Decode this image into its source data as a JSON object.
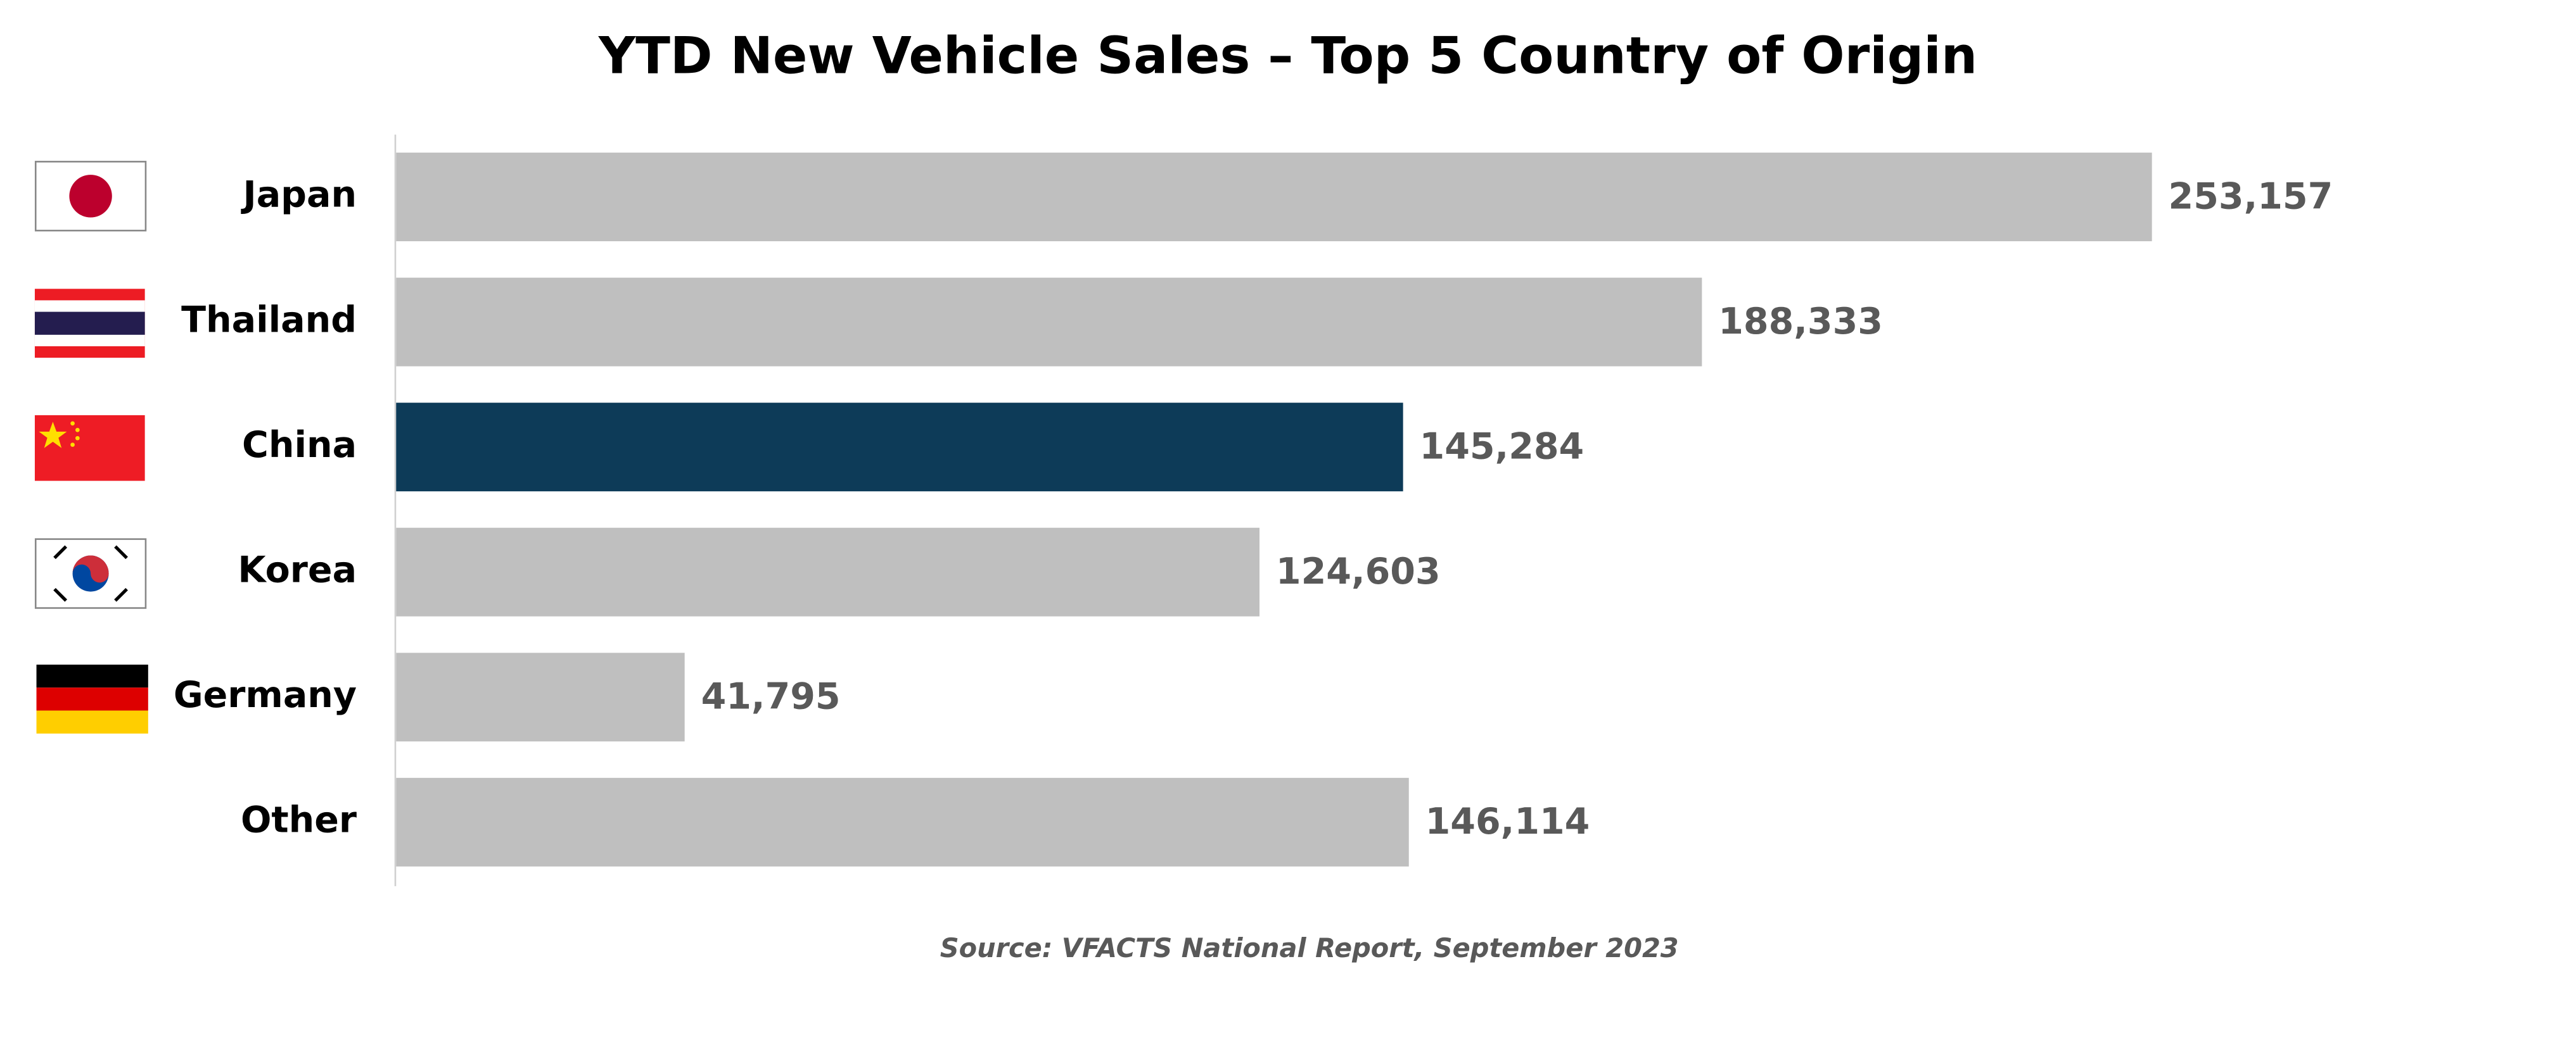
{
  "chart_data": {
    "type": "bar",
    "orientation": "horizontal",
    "title": "YTD New Vehicle Sales – Top 5 Country of Origin",
    "categories": [
      "Japan",
      "Thailand",
      "China",
      "Korea",
      "Germany",
      "Other"
    ],
    "values": [
      253157,
      188333,
      145284,
      124603,
      41795,
      146114
    ],
    "value_labels": [
      "253,157",
      "188,333",
      "145,284",
      "124,603",
      "41,795",
      "146,114"
    ],
    "colors": [
      "#bfbfbf",
      "#bfbfbf",
      "#0d3b58",
      "#bfbfbf",
      "#bfbfbf",
      "#bfbfbf"
    ],
    "source": "Source:  VFACTS National Report, September 2023"
  }
}
